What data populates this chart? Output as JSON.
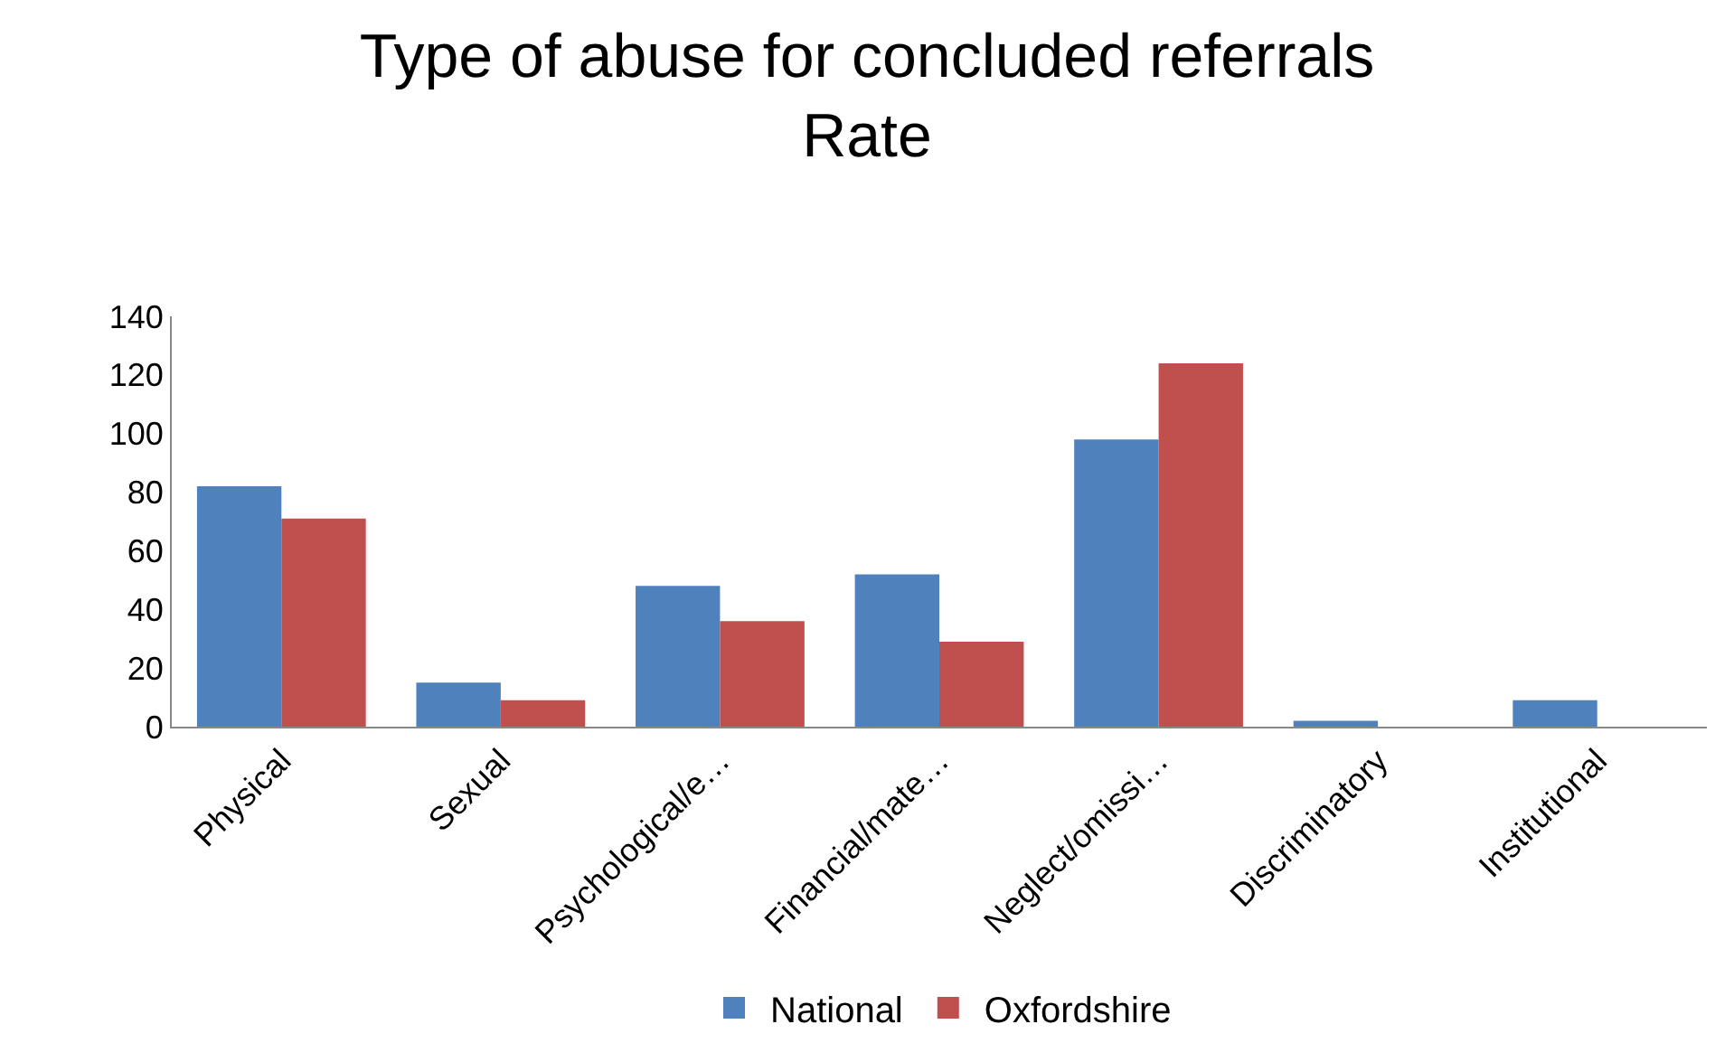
{
  "chart_data": {
    "type": "bar",
    "title": "Type of abuse for concluded referrals\nRate",
    "categories": [
      "Physical",
      "Sexual",
      "Psychological/e…",
      "Financial/mate…",
      "Neglect/omissi…",
      "Discriminatory",
      "Institutional"
    ],
    "series": [
      {
        "name": "National",
        "color": "#4f81bd",
        "values": [
          82,
          15,
          48,
          52,
          98,
          2,
          9
        ]
      },
      {
        "name": "Oxfordshire",
        "color": "#c0504d",
        "values": [
          71,
          9,
          36,
          29,
          124,
          0,
          0
        ]
      }
    ],
    "ylim": [
      0,
      140
    ],
    "yticks": [
      0,
      20,
      40,
      60,
      80,
      100,
      120,
      140
    ],
    "legend": "bottom"
  }
}
